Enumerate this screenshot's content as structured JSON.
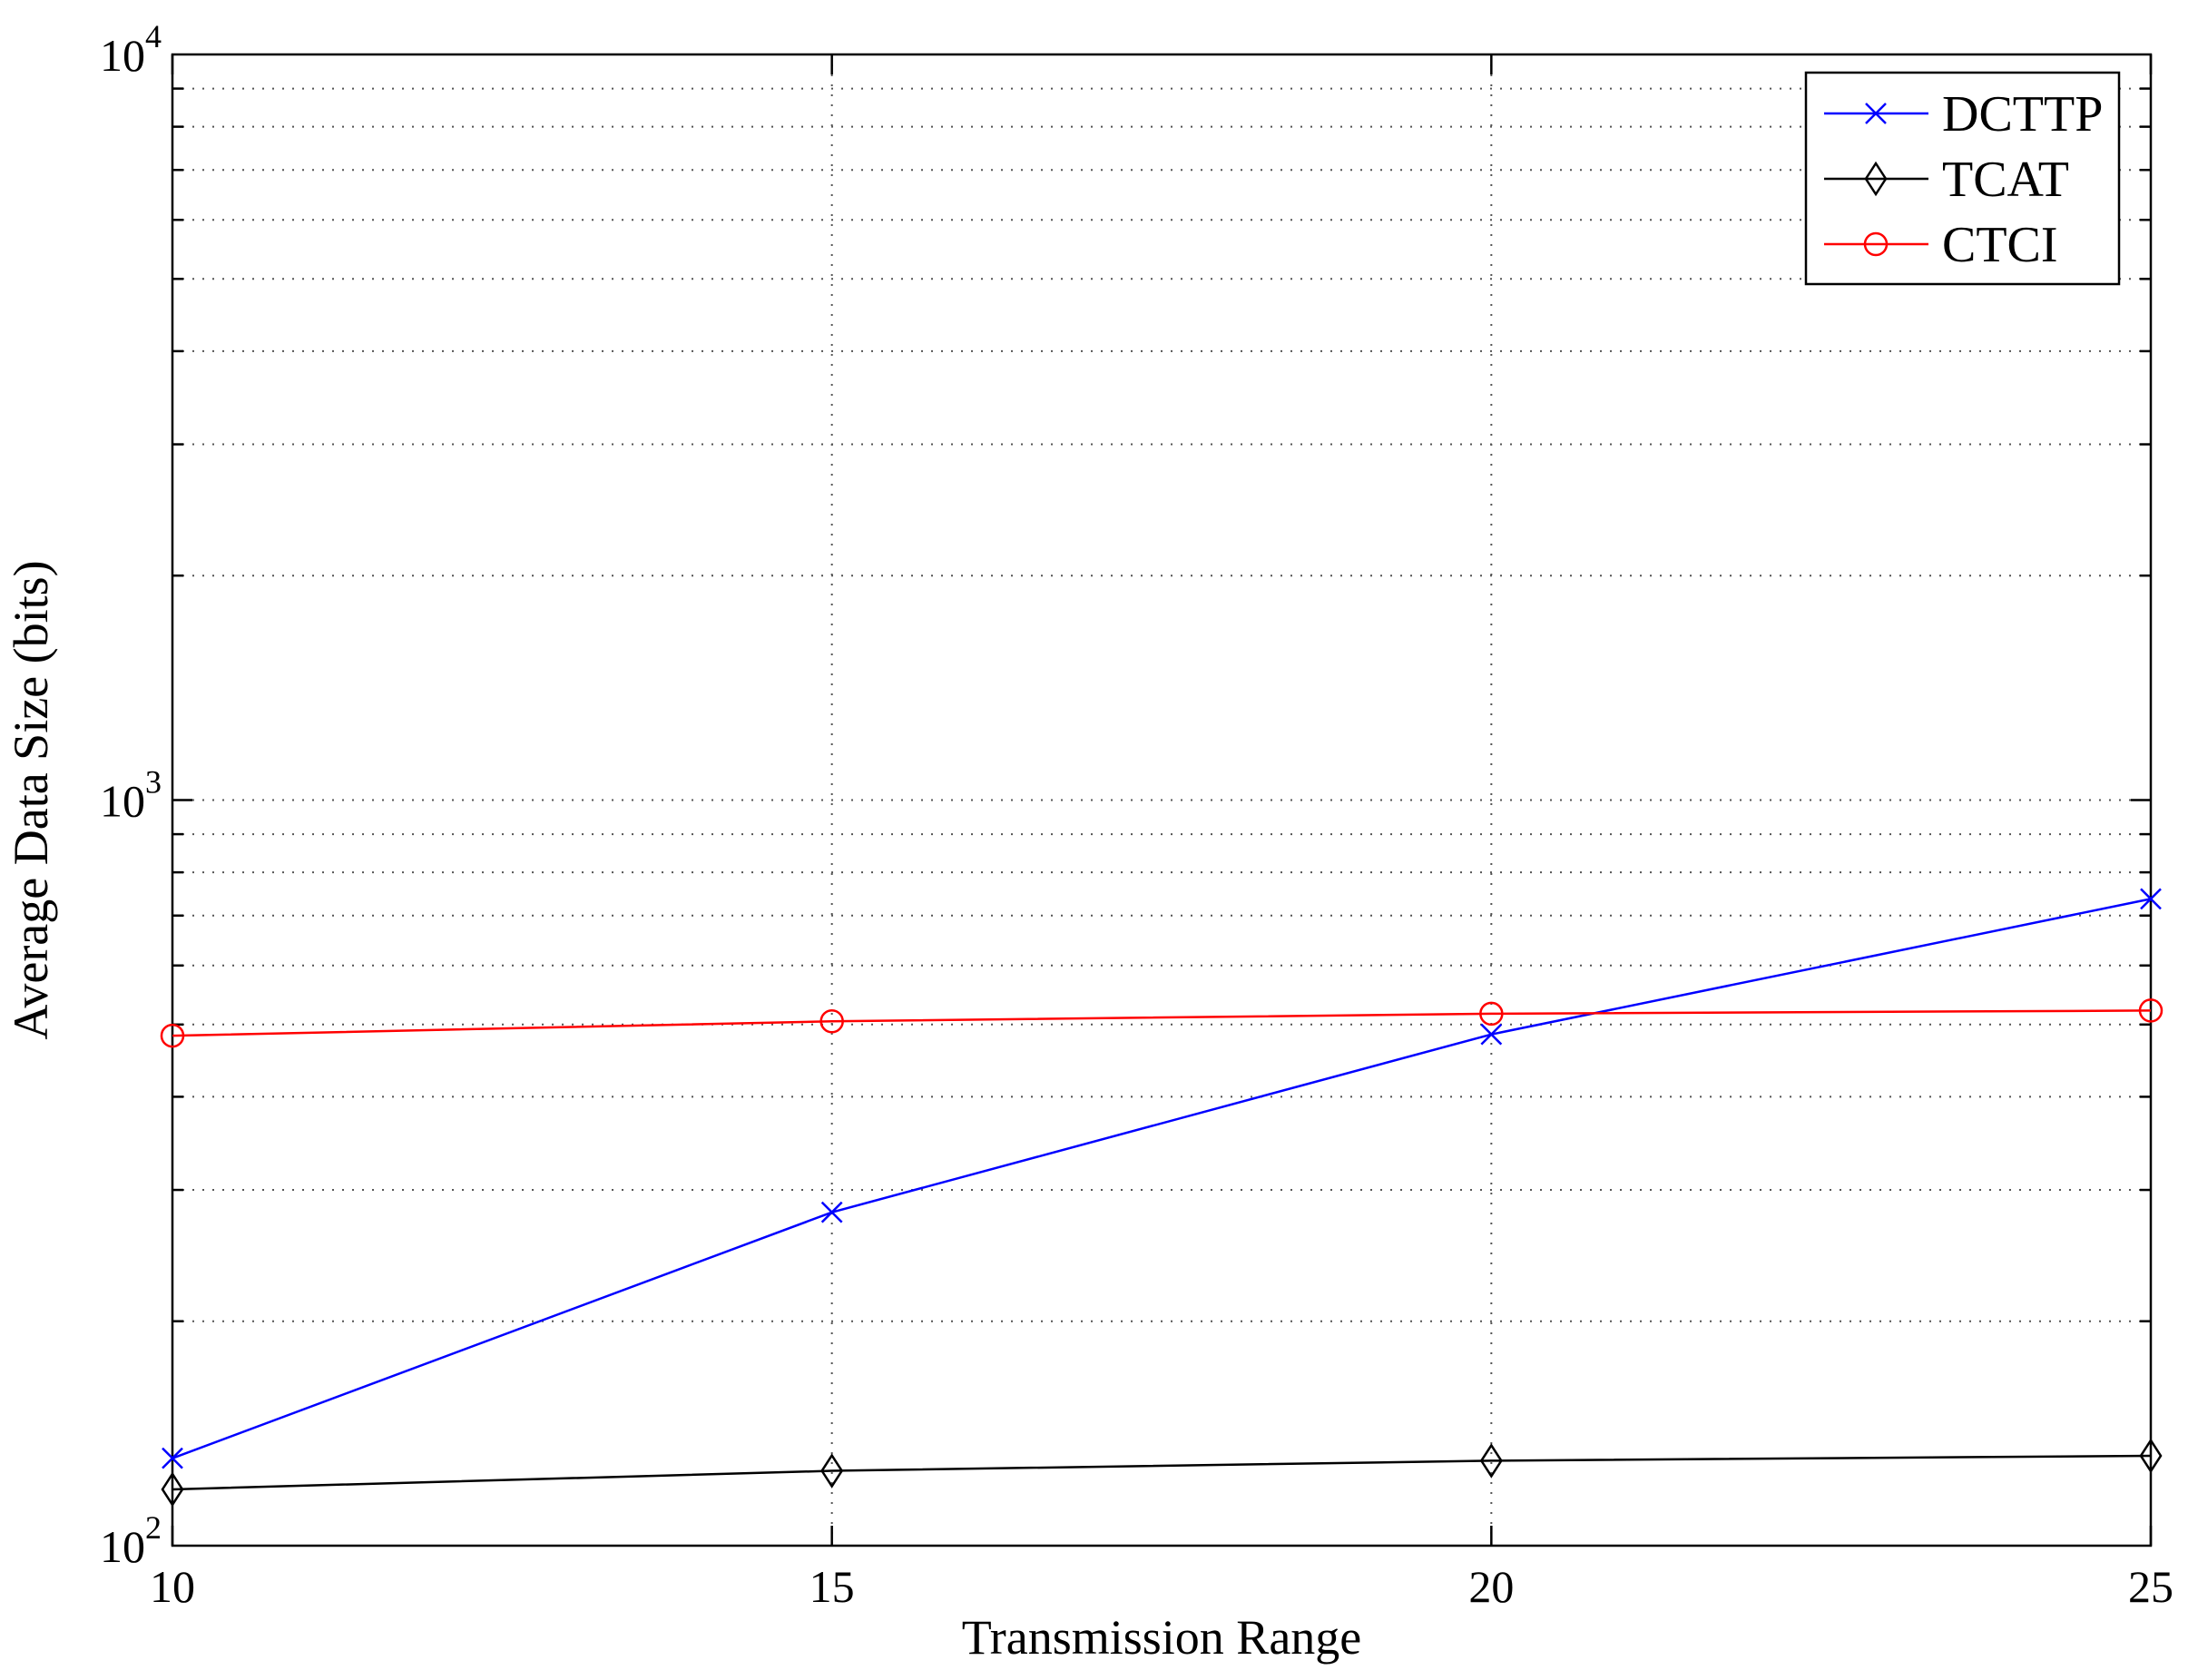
{
  "chart_data": {
    "type": "line",
    "title": "",
    "xlabel": "Transmission Range",
    "ylabel": "Average Data Size (bits)",
    "xlim": [
      10,
      25
    ],
    "ylim": [
      100,
      10000
    ],
    "yscale": "log",
    "grid": true,
    "legend_position": "top-right",
    "x": [
      10,
      15,
      20,
      25
    ],
    "x_ticks": [
      "10",
      "15",
      "20",
      "25"
    ],
    "y_ticks": [
      {
        "value": 100,
        "base": "10",
        "exp": "2"
      },
      {
        "value": 1000,
        "base": "10",
        "exp": "3"
      },
      {
        "value": 10000,
        "base": "10",
        "exp": "4"
      }
    ],
    "series": [
      {
        "name": "DCTTP",
        "color": "#0000ff",
        "marker": "x",
        "values": [
          131,
          280,
          485,
          737
        ]
      },
      {
        "name": "TCAT",
        "color": "#000000",
        "marker": "diamond",
        "values": [
          119,
          126,
          130,
          132
        ]
      },
      {
        "name": "CTCI",
        "color": "#ff0000",
        "marker": "circle",
        "values": [
          483,
          505,
          517,
          522
        ]
      }
    ]
  }
}
